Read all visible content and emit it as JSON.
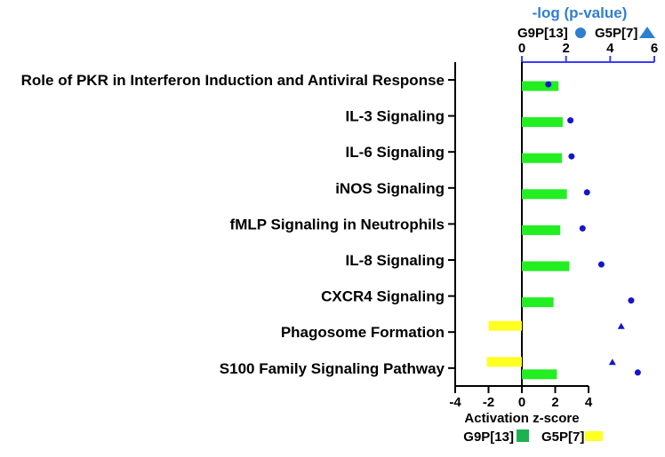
{
  "colors": {
    "g9p13_bar": "#22ee22",
    "g5p7_bar": "#ffff22",
    "g9p13_marker": "#1515cc",
    "g5p7_marker": "#1515cc",
    "top_axis": "#3a3aff",
    "top_title": "#2f7fd0",
    "legend_g9p13": "#1fb050",
    "legend_g5p7": "#ffff22",
    "legend_circle": "#2f7fd0",
    "legend_triangle": "#2f7fd0"
  },
  "chart_data": {
    "type": "bar",
    "orientation": "horizontal",
    "categories": [
      "Role of PKR in Interferon Induction and Antiviral Response",
      "IL-3 Signaling",
      "IL-6 Signaling",
      "iNOS Signaling",
      "fMLP Signaling in Neutrophils",
      "IL-8 Signaling",
      "CXCR4 Signaling",
      "Phagosome Formation",
      "S100 Family Signaling Pathway"
    ],
    "bar_series": [
      {
        "name": "G9P[13]",
        "values": [
          2.2,
          2.45,
          2.4,
          2.7,
          2.3,
          2.85,
          1.9,
          null,
          2.1
        ]
      },
      {
        "name": "G5P[7]",
        "values": [
          null,
          null,
          null,
          null,
          null,
          null,
          null,
          -2.0,
          -2.1
        ]
      }
    ],
    "pvalue_series": [
      {
        "name": "G9P[13]",
        "marker": "circle",
        "values": [
          1.2,
          2.2,
          2.25,
          2.95,
          2.75,
          3.6,
          4.95,
          null,
          5.25
        ]
      },
      {
        "name": "G5P[7]",
        "marker": "triangle",
        "values": [
          null,
          null,
          null,
          null,
          null,
          null,
          null,
          4.5,
          4.1
        ]
      }
    ],
    "xlabel": "Activation z-score",
    "xlim": [
      -4,
      4
    ],
    "xticks": [
      "-4",
      "-2",
      "0",
      "2",
      "4"
    ],
    "top_axis": {
      "title": "-log (p-value)",
      "range": [
        0,
        6
      ],
      "ticks": [
        "0",
        "2",
        "4",
        "6"
      ]
    },
    "top_legend": {
      "circle_label": "G9P[13]",
      "triangle_label": "G5P[7]"
    },
    "bottom_legend": {
      "g9p13_label": "G9P[13]",
      "g5p7_label": "G5P[7]"
    },
    "grid": false
  }
}
